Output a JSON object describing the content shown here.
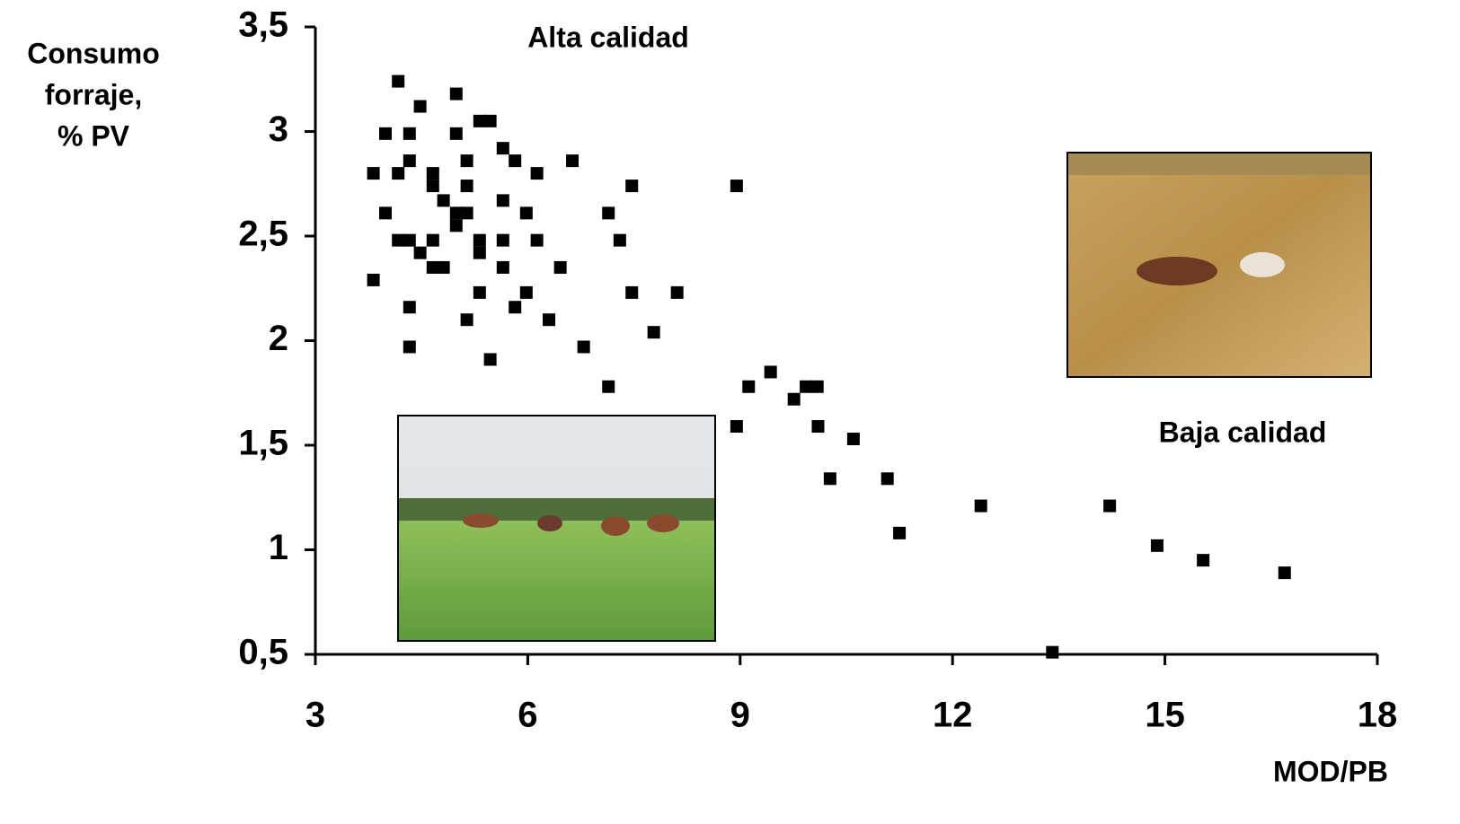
{
  "chart_data": {
    "type": "scatter",
    "y_label": [
      "Consumo",
      "forraje,",
      "% PV"
    ],
    "x_label": "MOD/PB",
    "annotations": [
      "Alta calidad",
      "Baja calidad"
    ],
    "color": "#000000",
    "xlim": [
      3,
      18
    ],
    "xticks": [
      3,
      6,
      9,
      12,
      15,
      18
    ],
    "ylim": [
      0.5,
      3.5
    ],
    "yticks": [
      {
        "value": 0.5,
        "label": "0,5"
      },
      1,
      {
        "value": 1.5,
        "label": "1,5"
      },
      2,
      {
        "value": 2.5,
        "label": "2,5"
      },
      3,
      {
        "value": 3.5,
        "label": "3,5"
      }
    ],
    "x": [
      4.17,
      4.99,
      4.48,
      5.32,
      5.47,
      3.99,
      4.33,
      4.99,
      5.65,
      4.33,
      5.14,
      5.82,
      6.63,
      3.82,
      4.17,
      4.66,
      6.13,
      4.66,
      5.14,
      7.47,
      8.95,
      4.81,
      5.65,
      3.99,
      4.99,
      5.14,
      5.98,
      7.14,
      4.99,
      4.17,
      4.33,
      4.66,
      5.32,
      5.65,
      6.13,
      7.3,
      4.48,
      5.32,
      4.66,
      4.81,
      5.65,
      6.46,
      3.82,
      5.32,
      5.98,
      7.47,
      8.11,
      4.33,
      5.82,
      5.14,
      6.3,
      7.78,
      4.33,
      6.79,
      5.47,
      7.14,
      9.12,
      9.43,
      9.93,
      10.09,
      9.76,
      8.95,
      10.1,
      10.6,
      10.27,
      11.08,
      11.25,
      12.4,
      14.22,
      14.89,
      15.54,
      16.69,
      13.41
    ],
    "values": [
      3.24,
      3.18,
      3.12,
      3.05,
      3.05,
      2.99,
      2.99,
      2.99,
      2.92,
      2.86,
      2.86,
      2.86,
      2.86,
      2.8,
      2.8,
      2.8,
      2.8,
      2.74,
      2.74,
      2.74,
      2.74,
      2.67,
      2.67,
      2.61,
      2.61,
      2.61,
      2.61,
      2.61,
      2.55,
      2.48,
      2.48,
      2.48,
      2.48,
      2.48,
      2.48,
      2.48,
      2.42,
      2.42,
      2.35,
      2.35,
      2.35,
      2.35,
      2.29,
      2.23,
      2.23,
      2.23,
      2.23,
      2.16,
      2.16,
      2.1,
      2.1,
      2.04,
      1.97,
      1.97,
      1.91,
      1.78,
      1.78,
      1.85,
      1.78,
      1.78,
      1.72,
      1.59,
      1.59,
      1.53,
      1.34,
      1.34,
      1.08,
      1.21,
      1.21,
      1.02,
      0.95,
      0.89,
      0.51
    ]
  }
}
